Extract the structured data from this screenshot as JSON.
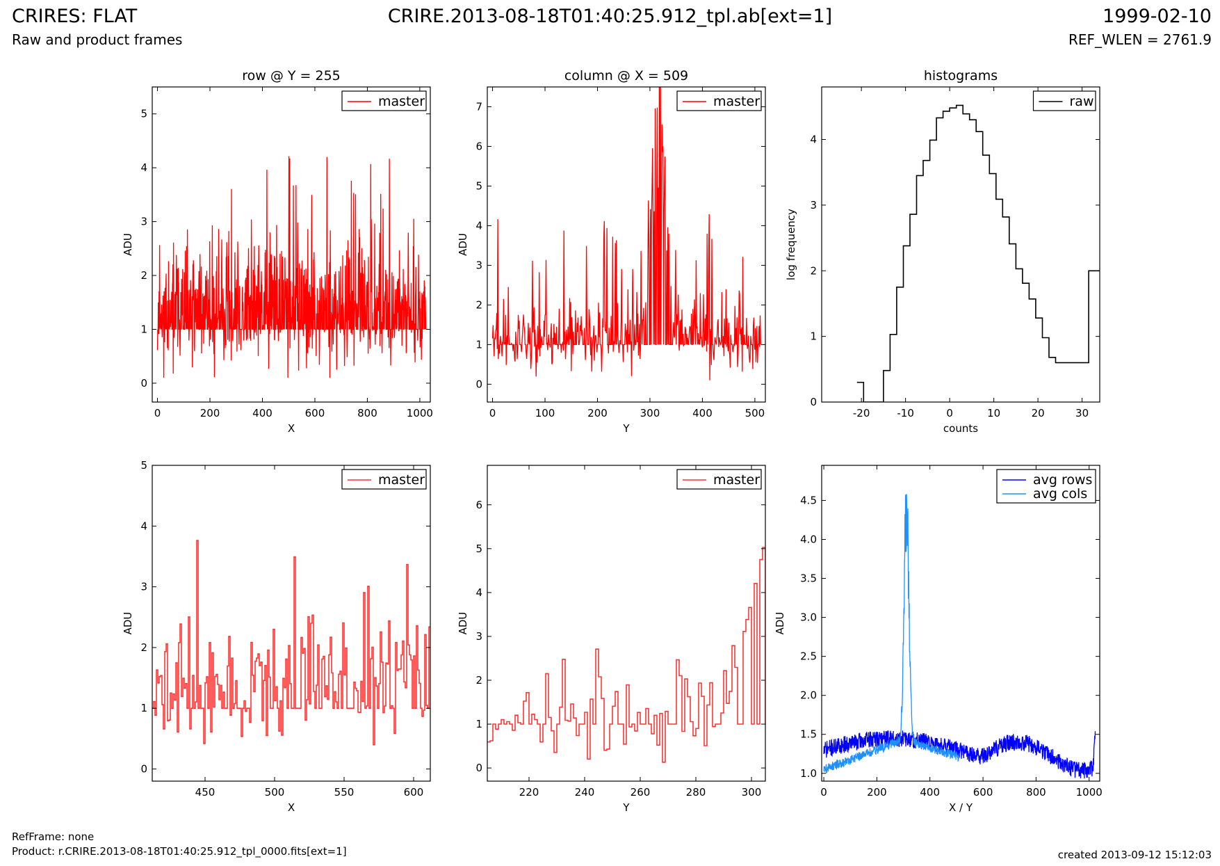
{
  "header": {
    "title_left": "CRIRES: FLAT",
    "subtitle_left": "Raw and product frames",
    "title_center": "CRIRE.2013-08-18T01:40:25.912_tpl.ab[ext=1]",
    "title_right": "1999-02-10",
    "subtitle_right": "REF_WLEN = 2761.9"
  },
  "footer": {
    "ref_frame": "RefFrame: none",
    "product": "Product: r.CRIRE.2013-08-18T01:40:25.912_tpl_0000.fits[ext=1]",
    "created": "created 2013-09-12 15:12:03"
  },
  "colors": {
    "master": "#ff0000",
    "master_zoom": "#ff3333",
    "raw": "#000000",
    "avg_rows": "#0000ff",
    "avg_cols": "#1e90ff"
  },
  "chart_data": [
    {
      "id": "row",
      "type": "line",
      "title": "row @ Y = 255",
      "xlabel": "X",
      "ylabel": "ADU",
      "xlim": [
        -20,
        1040
      ],
      "ylim": [
        -0.35,
        5.5
      ],
      "xticks": [
        0,
        200,
        400,
        600,
        800,
        1000
      ],
      "yticks": [
        0,
        1,
        2,
        3,
        4,
        5
      ],
      "legend": "top-right",
      "series": [
        {
          "name": "master",
          "color": "#ff0000",
          "generator": {
            "seed": 11,
            "n": 1024,
            "x0": 0,
            "dx": 1,
            "base": 1.45,
            "spread": 1.05,
            "spike_prob": 0.05,
            "spike_max": 4.3,
            "floor": 0.1
          }
        }
      ]
    },
    {
      "id": "column",
      "type": "line",
      "title": "column @ X = 509",
      "xlabel": "Y",
      "ylabel": "ADU",
      "xlim": [
        -10,
        520
      ],
      "ylim": [
        -0.45,
        7.5
      ],
      "xticks": [
        0,
        100,
        200,
        300,
        400,
        500
      ],
      "yticks": [
        0,
        1,
        2,
        3,
        4,
        5,
        6,
        7
      ],
      "legend": "top-right",
      "series": [
        {
          "name": "master",
          "color": "#ff0000",
          "generator": {
            "seed": 23,
            "n": 512,
            "x0": 0,
            "dx": 1,
            "base": 1.2,
            "spread": 0.9,
            "spike_prob": 0.06,
            "spike_max": 4.3,
            "floor": 0.1,
            "peak_center": 315,
            "peak_height": 5.0,
            "peak_width": 14
          }
        }
      ]
    },
    {
      "id": "histograms",
      "type": "line",
      "title": "histograms",
      "xlabel": "counts",
      "ylabel": "log frequency",
      "xlim": [
        -29,
        34
      ],
      "ylim": [
        0,
        4.8
      ],
      "xticks": [
        -20,
        -10,
        0,
        10,
        20,
        30
      ],
      "yticks": [
        0,
        1,
        2,
        3,
        4
      ],
      "legend": "top-right",
      "series": [
        {
          "name": "raw",
          "color": "#000000",
          "step": true,
          "x": [
            -21,
            -19.5,
            -18,
            -16.5,
            -15,
            -13.5,
            -12,
            -10.5,
            -9,
            -7.5,
            -6,
            -4.5,
            -3,
            -1.5,
            0,
            1.5,
            3,
            4.5,
            6,
            7.5,
            9,
            10.5,
            12,
            13.5,
            15,
            16.5,
            18,
            19.5,
            21,
            22.5,
            24,
            25.5,
            27,
            28.5,
            30,
            31.5,
            33,
            34.5
          ],
          "y": [
            0.3,
            0,
            0,
            0,
            0.48,
            1.03,
            1.75,
            2.38,
            2.86,
            3.45,
            3.68,
            3.99,
            4.33,
            4.43,
            4.48,
            4.52,
            4.39,
            4.3,
            4.12,
            3.76,
            3.48,
            3.09,
            2.82,
            2.41,
            2.03,
            1.81,
            1.57,
            1.28,
            0.98,
            0.68,
            0.6,
            0.6,
            0.6,
            0.6,
            0.6,
            2.0,
            2.0,
            2.0
          ]
        }
      ]
    },
    {
      "id": "row-zoom",
      "type": "line",
      "xlabel": "X",
      "ylabel": "ADU",
      "xlim": [
        412,
        612
      ],
      "ylim": [
        -0.2,
        5.0
      ],
      "xticks": [
        450,
        500,
        550,
        600
      ],
      "yticks": [
        0,
        1,
        2,
        3,
        4,
        5
      ],
      "legend": "top-right",
      "series": [
        {
          "name": "master",
          "color": "#ff3333",
          "step": true,
          "generator": {
            "seed": 37,
            "n": 200,
            "x0": 412,
            "dx": 1,
            "base": 1.45,
            "spread": 1.0,
            "spike_prob": 0.07,
            "spike_max": 3.9,
            "floor": 0.1
          }
        }
      ]
    },
    {
      "id": "column-zoom",
      "type": "line",
      "xlabel": "Y",
      "ylabel": "ADU",
      "xlim": [
        205,
        305
      ],
      "ylim": [
        -0.3,
        6.9
      ],
      "xticks": [
        220,
        240,
        260,
        280,
        300
      ],
      "yticks": [
        0,
        1,
        2,
        3,
        4,
        5,
        6
      ],
      "legend": "top-right",
      "series": [
        {
          "name": "master",
          "color": "#ff3333",
          "step": true,
          "generator": {
            "seed": 53,
            "n": 101,
            "x0": 205,
            "dx": 1,
            "base": 1.2,
            "spread": 0.9,
            "spike_prob": 0.06,
            "spike_max": 3.0,
            "floor": 0.1,
            "ramp_start": 290,
            "ramp_end": 305,
            "ramp_to": 5.3
          }
        }
      ]
    },
    {
      "id": "averages",
      "type": "line",
      "xlabel": "X / Y",
      "ylabel": "ADU",
      "xlim": [
        -8,
        1040
      ],
      "ylim": [
        0.9,
        4.95
      ],
      "xticks": [
        0,
        200,
        400,
        600,
        800,
        1000
      ],
      "yticks": [
        1.0,
        1.5,
        2.0,
        2.5,
        3.0,
        3.5,
        4.0,
        4.5
      ],
      "legend": "top-right",
      "series": [
        {
          "name": "avg rows",
          "color": "#0000ff",
          "generator": {
            "seed": 71,
            "n": 1024,
            "x0": 0,
            "dx": 1,
            "mode": "rows"
          }
        },
        {
          "name": "avg cols",
          "color": "#1e90ff",
          "generator": {
            "seed": 89,
            "n": 512,
            "x0": 0,
            "dx": 1,
            "mode": "cols"
          }
        }
      ]
    }
  ]
}
